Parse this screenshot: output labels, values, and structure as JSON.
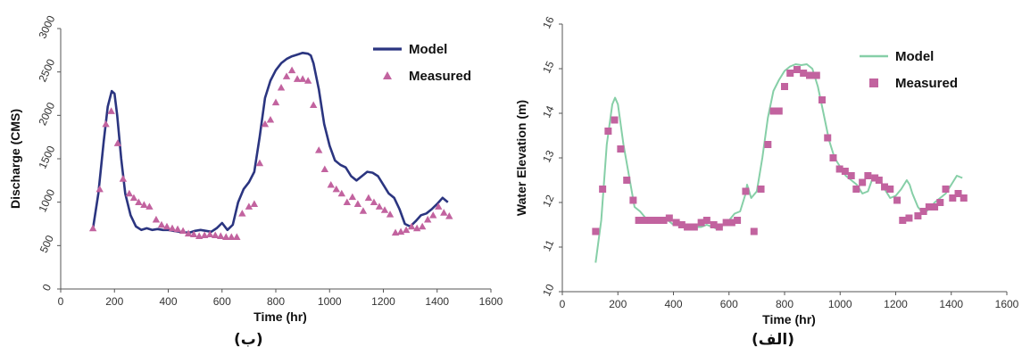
{
  "colors": {
    "left_model": "#2b3580",
    "right_model": "#86cfa7",
    "measured": "#c2639f",
    "axis": "#555555"
  },
  "chart_data": [
    {
      "type": "line",
      "caption": "(ب)",
      "xlabel": "Time (hr)",
      "ylabel": "Discharge (CMS)",
      "xlim": [
        0,
        1600
      ],
      "ylim": [
        0,
        3000
      ],
      "x_ticks": [
        "0",
        "200",
        "400",
        "600",
        "800",
        "1000",
        "1200",
        "1400",
        "1600"
      ],
      "y_ticks": [
        "0",
        "500",
        "1000",
        "1500",
        "2000",
        "2500",
        "3000"
      ],
      "legend_position": "top-right",
      "series": [
        {
          "name": "Model",
          "style": "line",
          "x": [
            120,
            140,
            160,
            175,
            190,
            200,
            210,
            225,
            240,
            260,
            280,
            300,
            320,
            340,
            360,
            380,
            400,
            420,
            440,
            460,
            480,
            500,
            520,
            540,
            560,
            580,
            600,
            620,
            640,
            660,
            680,
            700,
            720,
            740,
            760,
            780,
            800,
            820,
            840,
            860,
            880,
            900,
            920,
            930,
            940,
            960,
            980,
            1000,
            1020,
            1040,
            1060,
            1080,
            1100,
            1120,
            1140,
            1160,
            1180,
            1200,
            1220,
            1240,
            1260,
            1280,
            1300,
            1320,
            1340,
            1360,
            1380,
            1400,
            1420,
            1440
          ],
          "y": [
            700,
            1100,
            1700,
            2100,
            2280,
            2250,
            2000,
            1500,
            1100,
            850,
            720,
            680,
            700,
            680,
            690,
            680,
            680,
            670,
            660,
            650,
            650,
            670,
            680,
            670,
            660,
            700,
            760,
            680,
            740,
            1000,
            1150,
            1230,
            1350,
            1750,
            2200,
            2400,
            2520,
            2600,
            2650,
            2680,
            2700,
            2720,
            2710,
            2690,
            2600,
            2300,
            1900,
            1650,
            1480,
            1430,
            1400,
            1300,
            1250,
            1300,
            1350,
            1340,
            1300,
            1200,
            1100,
            1050,
            920,
            750,
            720,
            780,
            850,
            870,
            920,
            980,
            1050,
            1000
          ]
        },
        {
          "name": "Measured",
          "style": "triangle",
          "x": [
            120,
            145,
            168,
            188,
            212,
            232,
            255,
            272,
            290,
            310,
            330,
            355,
            375,
            395,
            415,
            435,
            455,
            475,
            495,
            515,
            535,
            555,
            575,
            595,
            615,
            635,
            655,
            675,
            700,
            720,
            740,
            760,
            780,
            800,
            820,
            840,
            860,
            880,
            900,
            920,
            940,
            960,
            982,
            1005,
            1025,
            1045,
            1065,
            1085,
            1105,
            1125,
            1145,
            1165,
            1185,
            1205,
            1225,
            1245,
            1265,
            1285,
            1305,
            1325,
            1345,
            1365,
            1385,
            1405,
            1425,
            1445
          ],
          "y": [
            700,
            1150,
            1900,
            2050,
            1680,
            1270,
            1100,
            1050,
            1000,
            970,
            950,
            800,
            740,
            720,
            700,
            690,
            670,
            640,
            630,
            610,
            620,
            630,
            620,
            610,
            600,
            600,
            600,
            870,
            950,
            980,
            1450,
            1900,
            1950,
            2150,
            2320,
            2450,
            2520,
            2420,
            2420,
            2400,
            2120,
            1600,
            1380,
            1200,
            1150,
            1100,
            1000,
            1060,
            980,
            900,
            1050,
            1000,
            950,
            910,
            860,
            650,
            660,
            680,
            720,
            700,
            720,
            800,
            850,
            950,
            880,
            840
          ]
        }
      ]
    },
    {
      "type": "line",
      "caption": "(الف)",
      "xlabel": "Time (hr)",
      "ylabel": "Water Elevation (m)",
      "xlim": [
        0,
        1600
      ],
      "ylim": [
        10,
        16
      ],
      "x_ticks": [
        "0",
        "200",
        "400",
        "600",
        "800",
        "1000",
        "1200",
        "1400",
        "1600"
      ],
      "y_ticks": [
        "10",
        "11",
        "12",
        "13",
        "14",
        "15",
        "16"
      ],
      "legend_position": "top-right",
      "series": [
        {
          "name": "Model",
          "style": "line",
          "x": [
            120,
            140,
            160,
            180,
            190,
            200,
            220,
            240,
            260,
            280,
            300,
            320,
            340,
            360,
            380,
            400,
            420,
            440,
            460,
            480,
            500,
            520,
            540,
            560,
            580,
            600,
            620,
            640,
            660,
            665,
            680,
            700,
            720,
            740,
            760,
            780,
            800,
            820,
            840,
            860,
            880,
            900,
            920,
            940,
            960,
            980,
            1000,
            1020,
            1040,
            1060,
            1080,
            1100,
            1120,
            1140,
            1160,
            1180,
            1200,
            1220,
            1240,
            1250,
            1260,
            1280,
            1300,
            1320,
            1340,
            1360,
            1380,
            1400,
            1420,
            1440
          ],
          "y": [
            10.65,
            11.6,
            13.3,
            14.2,
            14.35,
            14.2,
            13.3,
            12.6,
            11.9,
            11.8,
            11.65,
            11.6,
            11.55,
            11.55,
            11.6,
            11.5,
            11.5,
            11.5,
            11.45,
            11.45,
            11.45,
            11.5,
            11.45,
            11.4,
            11.5,
            11.6,
            11.75,
            11.8,
            12.2,
            12.4,
            12.1,
            12.25,
            13.0,
            13.9,
            14.5,
            14.75,
            14.95,
            15.05,
            15.1,
            15.08,
            15.1,
            15.0,
            14.6,
            14.0,
            13.4,
            13.0,
            12.8,
            12.6,
            12.5,
            12.4,
            12.2,
            12.25,
            12.6,
            12.55,
            12.3,
            12.1,
            12.15,
            12.3,
            12.5,
            12.4,
            12.2,
            11.9,
            11.75,
            11.85,
            12.0,
            12.1,
            12.2,
            12.4,
            12.6,
            12.55
          ]
        },
        {
          "name": "Measured",
          "style": "square",
          "x": [
            120,
            145,
            165,
            188,
            210,
            232,
            255,
            275,
            300,
            320,
            345,
            365,
            385,
            410,
            430,
            450,
            475,
            500,
            520,
            545,
            565,
            590,
            610,
            630,
            660,
            690,
            715,
            740,
            760,
            780,
            800,
            820,
            845,
            868,
            890,
            915,
            935,
            955,
            975,
            998,
            1018,
            1040,
            1058,
            1080,
            1100,
            1125,
            1140,
            1160,
            1180,
            1205,
            1225,
            1248,
            1280,
            1300,
            1320,
            1340,
            1360,
            1380,
            1405,
            1425,
            1445
          ],
          "y": [
            11.35,
            12.3,
            13.6,
            13.85,
            13.2,
            12.5,
            12.05,
            11.6,
            11.6,
            11.6,
            11.6,
            11.6,
            11.65,
            11.55,
            11.5,
            11.45,
            11.45,
            11.55,
            11.6,
            11.5,
            11.45,
            11.55,
            11.55,
            11.6,
            12.25,
            11.35,
            12.3,
            13.3,
            14.05,
            14.05,
            14.6,
            14.9,
            14.98,
            14.9,
            14.85,
            14.85,
            14.3,
            13.45,
            13.0,
            12.75,
            12.7,
            12.6,
            12.3,
            12.45,
            12.6,
            12.55,
            12.5,
            12.35,
            12.3,
            12.05,
            11.6,
            11.65,
            11.7,
            11.8,
            11.9,
            11.9,
            12.0,
            12.3,
            12.1,
            12.2,
            12.1
          ]
        }
      ]
    }
  ]
}
